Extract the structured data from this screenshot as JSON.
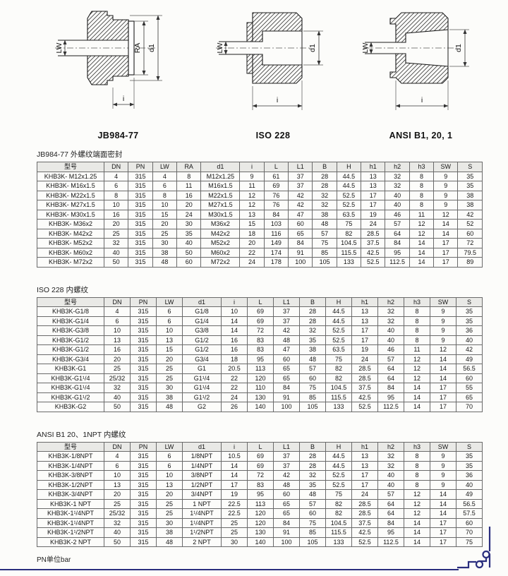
{
  "page": {
    "note": "PN单位bar"
  },
  "colors": {
    "accent_blue": "#2a2e7e",
    "header_gray": "#e9e9e6"
  },
  "diagrams": [
    {
      "caption": "JB984-77",
      "labels": {
        "lw": "LW",
        "ra": "RA",
        "d1": "d1",
        "i": "i"
      }
    },
    {
      "caption": "ISO 228",
      "labels": {
        "lw": "LW",
        "d1": "d1",
        "i": "i"
      }
    },
    {
      "caption": "ANSI B1, 20, 1",
      "labels": {
        "lw": "LW",
        "d1": "d1",
        "i": "i"
      }
    }
  ],
  "tables": [
    {
      "caption": "JB984-77 外螺纹端面密封",
      "headers": [
        "型号",
        "DN",
        "PN",
        "LW",
        "RA",
        "d1",
        "i",
        "L",
        "L1",
        "B",
        "H",
        "h1",
        "h2",
        "h3",
        "SW",
        "S"
      ],
      "rows": [
        [
          "KHB3K- M12x1.25",
          "4",
          "315",
          "4",
          "8",
          "M12x1.25",
          "9",
          "61",
          "37",
          "28",
          "44.5",
          "13",
          "32",
          "8",
          "9",
          "35"
        ],
        [
          "KHB3K- M16x1.5",
          "6",
          "315",
          "6",
          "11",
          "M16x1.5",
          "11",
          "69",
          "37",
          "28",
          "44.5",
          "13",
          "32",
          "8",
          "9",
          "35"
        ],
        [
          "KHB3K- M22x1.5",
          "8",
          "315",
          "8",
          "16",
          "M22x1.5",
          "12",
          "76",
          "42",
          "32",
          "52.5",
          "17",
          "40",
          "8",
          "9",
          "38"
        ],
        [
          "KHB3K- M27x1.5",
          "10",
          "315",
          "10",
          "20",
          "M27x1.5",
          "12",
          "76",
          "42",
          "32",
          "52.5",
          "17",
          "40",
          "8",
          "9",
          "38"
        ],
        [
          "KHB3K- M30x1.5",
          "16",
          "315",
          "15",
          "24",
          "M30x1.5",
          "13",
          "84",
          "47",
          "38",
          "63.5",
          "19",
          "46",
          "11",
          "12",
          "42"
        ],
        [
          "KHB3K- M36x2",
          "20",
          "315",
          "20",
          "30",
          "M36x2",
          "15",
          "103",
          "60",
          "48",
          "75",
          "24",
          "57",
          "12",
          "14",
          "52"
        ],
        [
          "KHB3K- M42x2",
          "25",
          "315",
          "25",
          "35",
          "M42x2",
          "18",
          "116",
          "65",
          "57",
          "82",
          "28.5",
          "64",
          "12",
          "14",
          "60"
        ],
        [
          "KHB3K- M52x2",
          "32",
          "315",
          "30",
          "40",
          "M52x2",
          "20",
          "149",
          "84",
          "75",
          "104.5",
          "37.5",
          "84",
          "14",
          "17",
          "72"
        ],
        [
          "KHB3K- M60x2",
          "40",
          "315",
          "38",
          "50",
          "M60x2",
          "22",
          "174",
          "91",
          "85",
          "115.5",
          "42.5",
          "95",
          "14",
          "17",
          "79.5"
        ],
        [
          "KHB3K- M72x2",
          "50",
          "315",
          "48",
          "60",
          "M72x2",
          "24",
          "178",
          "100",
          "105",
          "133",
          "52.5",
          "112.5",
          "14",
          "17",
          "89"
        ]
      ]
    },
    {
      "caption": "ISO 228 内螺纹",
      "headers": [
        "型号",
        "DN",
        "PN",
        "LW",
        "d1",
        "i",
        "L",
        "L1",
        "B",
        "H",
        "h1",
        "h2",
        "h3",
        "SW",
        "S"
      ],
      "rows": [
        [
          "KHB3K-G1/8",
          "4",
          "315",
          "6",
          "G1/8",
          "10",
          "69",
          "37",
          "28",
          "44.5",
          "13",
          "32",
          "8",
          "9",
          "35"
        ],
        [
          "KHB3K-G1/4",
          "6",
          "315",
          "6",
          "G1/4",
          "14",
          "69",
          "37",
          "28",
          "44.5",
          "13",
          "32",
          "8",
          "9",
          "35"
        ],
        [
          "KHB3K-G3/8",
          "10",
          "315",
          "10",
          "G3/8",
          "14",
          "72",
          "42",
          "32",
          "52.5",
          "17",
          "40",
          "8",
          "9",
          "36"
        ],
        [
          "KHB3K-G1/2",
          "13",
          "315",
          "13",
          "G1/2",
          "16",
          "83",
          "48",
          "35",
          "52.5",
          "17",
          "40",
          "8",
          "9",
          "40"
        ],
        [
          "KHB3K-G1/2",
          "16",
          "315",
          "15",
          "G1/2",
          "16",
          "83",
          "47",
          "38",
          "63.5",
          "19",
          "46",
          "11",
          "12",
          "42"
        ],
        [
          "KHB3K-G3/4",
          "20",
          "315",
          "20",
          "G3/4",
          "18",
          "95",
          "60",
          "48",
          "75",
          "24",
          "57",
          "12",
          "14",
          "49"
        ],
        [
          "KHB3K-G1",
          "25",
          "315",
          "25",
          "G1",
          "20.5",
          "113",
          "65",
          "57",
          "82",
          "28.5",
          "64",
          "12",
          "14",
          "56.5"
        ],
        [
          "KHB3K-G1¹/4",
          "25/32",
          "315",
          "25",
          "G1¹/4",
          "22",
          "120",
          "65",
          "60",
          "82",
          "28.5",
          "64",
          "12",
          "14",
          "60"
        ],
        [
          "KHB3K-G1¹/4",
          "32",
          "315",
          "30",
          "G1¹/4",
          "22",
          "110",
          "84",
          "75",
          "104.5",
          "37.5",
          "84",
          "14",
          "17",
          "55"
        ],
        [
          "KHB3K-G1¹/2",
          "40",
          "315",
          "38",
          "G1¹/2",
          "24",
          "130",
          "91",
          "85",
          "115.5",
          "42.5",
          "95",
          "14",
          "17",
          "65"
        ],
        [
          "KHB3K-G2",
          "50",
          "315",
          "48",
          "G2",
          "26",
          "140",
          "100",
          "105",
          "133",
          "52.5",
          "112.5",
          "14",
          "17",
          "70"
        ]
      ]
    },
    {
      "caption": "ANSI B1 20、1NPT 内螺纹",
      "headers": [
        "型号",
        "DN",
        "PN",
        "LW",
        "d1",
        "i",
        "L",
        "L1",
        "B",
        "H",
        "h1",
        "h2",
        "h3",
        "SW",
        "S"
      ],
      "rows": [
        [
          "KHB3K-1/8NPT",
          "4",
          "315",
          "6",
          "1/8NPT",
          "10.5",
          "69",
          "37",
          "28",
          "44.5",
          "13",
          "32",
          "8",
          "9",
          "35"
        ],
        [
          "KHB3K-1/4NPT",
          "6",
          "315",
          "6",
          "1/4NPT",
          "14",
          "69",
          "37",
          "28",
          "44.5",
          "13",
          "32",
          "8",
          "9",
          "35"
        ],
        [
          "KHB3K-3/8NPT",
          "10",
          "315",
          "10",
          "3/8NPT",
          "14",
          "72",
          "42",
          "32",
          "52.5",
          "17",
          "40",
          "8",
          "9",
          "36"
        ],
        [
          "KHB3K-1/2NPT",
          "13",
          "315",
          "13",
          "1/2NPT",
          "17",
          "83",
          "48",
          "35",
          "52.5",
          "17",
          "40",
          "8",
          "9",
          "40"
        ],
        [
          "KHB3K-3/4NPT",
          "20",
          "315",
          "20",
          "3/4NPT",
          "19",
          "95",
          "60",
          "48",
          "75",
          "24",
          "57",
          "12",
          "14",
          "49"
        ],
        [
          "KHB3K-1 NPT",
          "25",
          "315",
          "25",
          "1 NPT",
          "22.5",
          "113",
          "65",
          "57",
          "82",
          "28.5",
          "64",
          "12",
          "14",
          "56.5"
        ],
        [
          "KHB3K-1¹/4NPT",
          "25/32",
          "315",
          "25",
          "1¹/4NPT",
          "22.5",
          "120",
          "65",
          "60",
          "82",
          "28.5",
          "64",
          "12",
          "14",
          "57.5"
        ],
        [
          "KHB3K-1¹/4NPT",
          "32",
          "315",
          "30",
          "1¹/4NPT",
          "25",
          "120",
          "84",
          "75",
          "104.5",
          "37.5",
          "84",
          "14",
          "17",
          "60"
        ],
        [
          "KHB3K-1¹/2NPT",
          "40",
          "315",
          "38",
          "1¹/2NPT",
          "25",
          "130",
          "91",
          "85",
          "115.5",
          "42.5",
          "95",
          "14",
          "17",
          "70"
        ],
        [
          "KHB3K-2 NPT",
          "50",
          "315",
          "48",
          "2 NPT",
          "30",
          "140",
          "100",
          "105",
          "133",
          "52.5",
          "112.5",
          "14",
          "17",
          "75"
        ]
      ]
    }
  ]
}
